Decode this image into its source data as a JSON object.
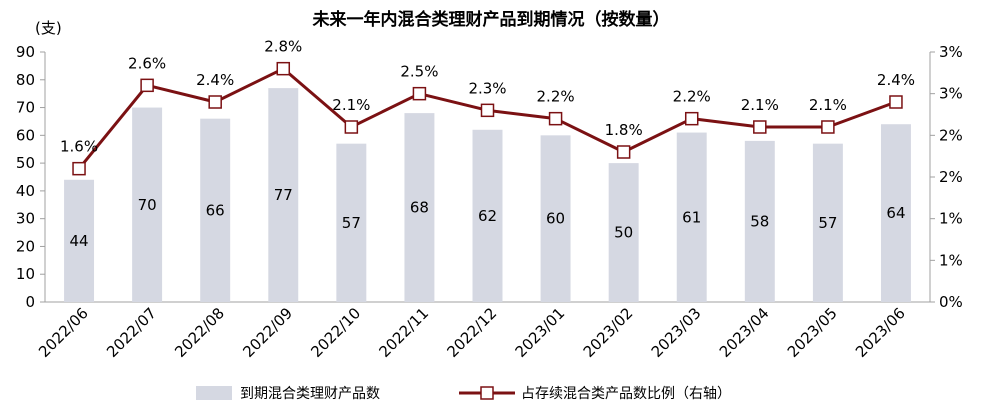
{
  "chart_data": {
    "type": "bar+line",
    "title": "未来一年内混合类理财产品到期情况（按数量）",
    "left_axis_unit": "(支)",
    "categories": [
      "2022/06",
      "2022/07",
      "2022/08",
      "2022/09",
      "2022/10",
      "2022/11",
      "2022/12",
      "2023/01",
      "2023/02",
      "2023/03",
      "2023/04",
      "2023/05",
      "2023/06"
    ],
    "series": [
      {
        "name": "到期混合类理财产品数",
        "type": "bar",
        "axis": "left",
        "values": [
          44,
          70,
          66,
          77,
          57,
          68,
          62,
          60,
          50,
          61,
          58,
          57,
          64
        ],
        "color": "#d5d8e2"
      },
      {
        "name": "占存续混合类产品数比例（右轴）",
        "type": "line",
        "axis": "right",
        "values": [
          1.6,
          2.6,
          2.4,
          2.8,
          2.1,
          2.5,
          2.3,
          2.2,
          1.8,
          2.2,
          2.1,
          2.1,
          2.4
        ],
        "value_labels": [
          "1.6%",
          "2.6%",
          "2.4%",
          "2.8%",
          "2.1%",
          "2.5%",
          "2.3%",
          "2.2%",
          "1.8%",
          "2.2%",
          "2.1%",
          "2.1%",
          "2.4%"
        ],
        "color": "#7b1113"
      }
    ],
    "left_axis": {
      "ylim": [
        0,
        90
      ],
      "ticks": [
        "0",
        "10",
        "20",
        "30",
        "40",
        "50",
        "60",
        "70",
        "80",
        "90"
      ]
    },
    "right_axis": {
      "ylim": [
        0,
        3
      ],
      "ticks": [
        "0%",
        "1%",
        "1%",
        "2%",
        "2%",
        "3%",
        "3%"
      ]
    },
    "grid": false,
    "legend_position": "bottom"
  }
}
